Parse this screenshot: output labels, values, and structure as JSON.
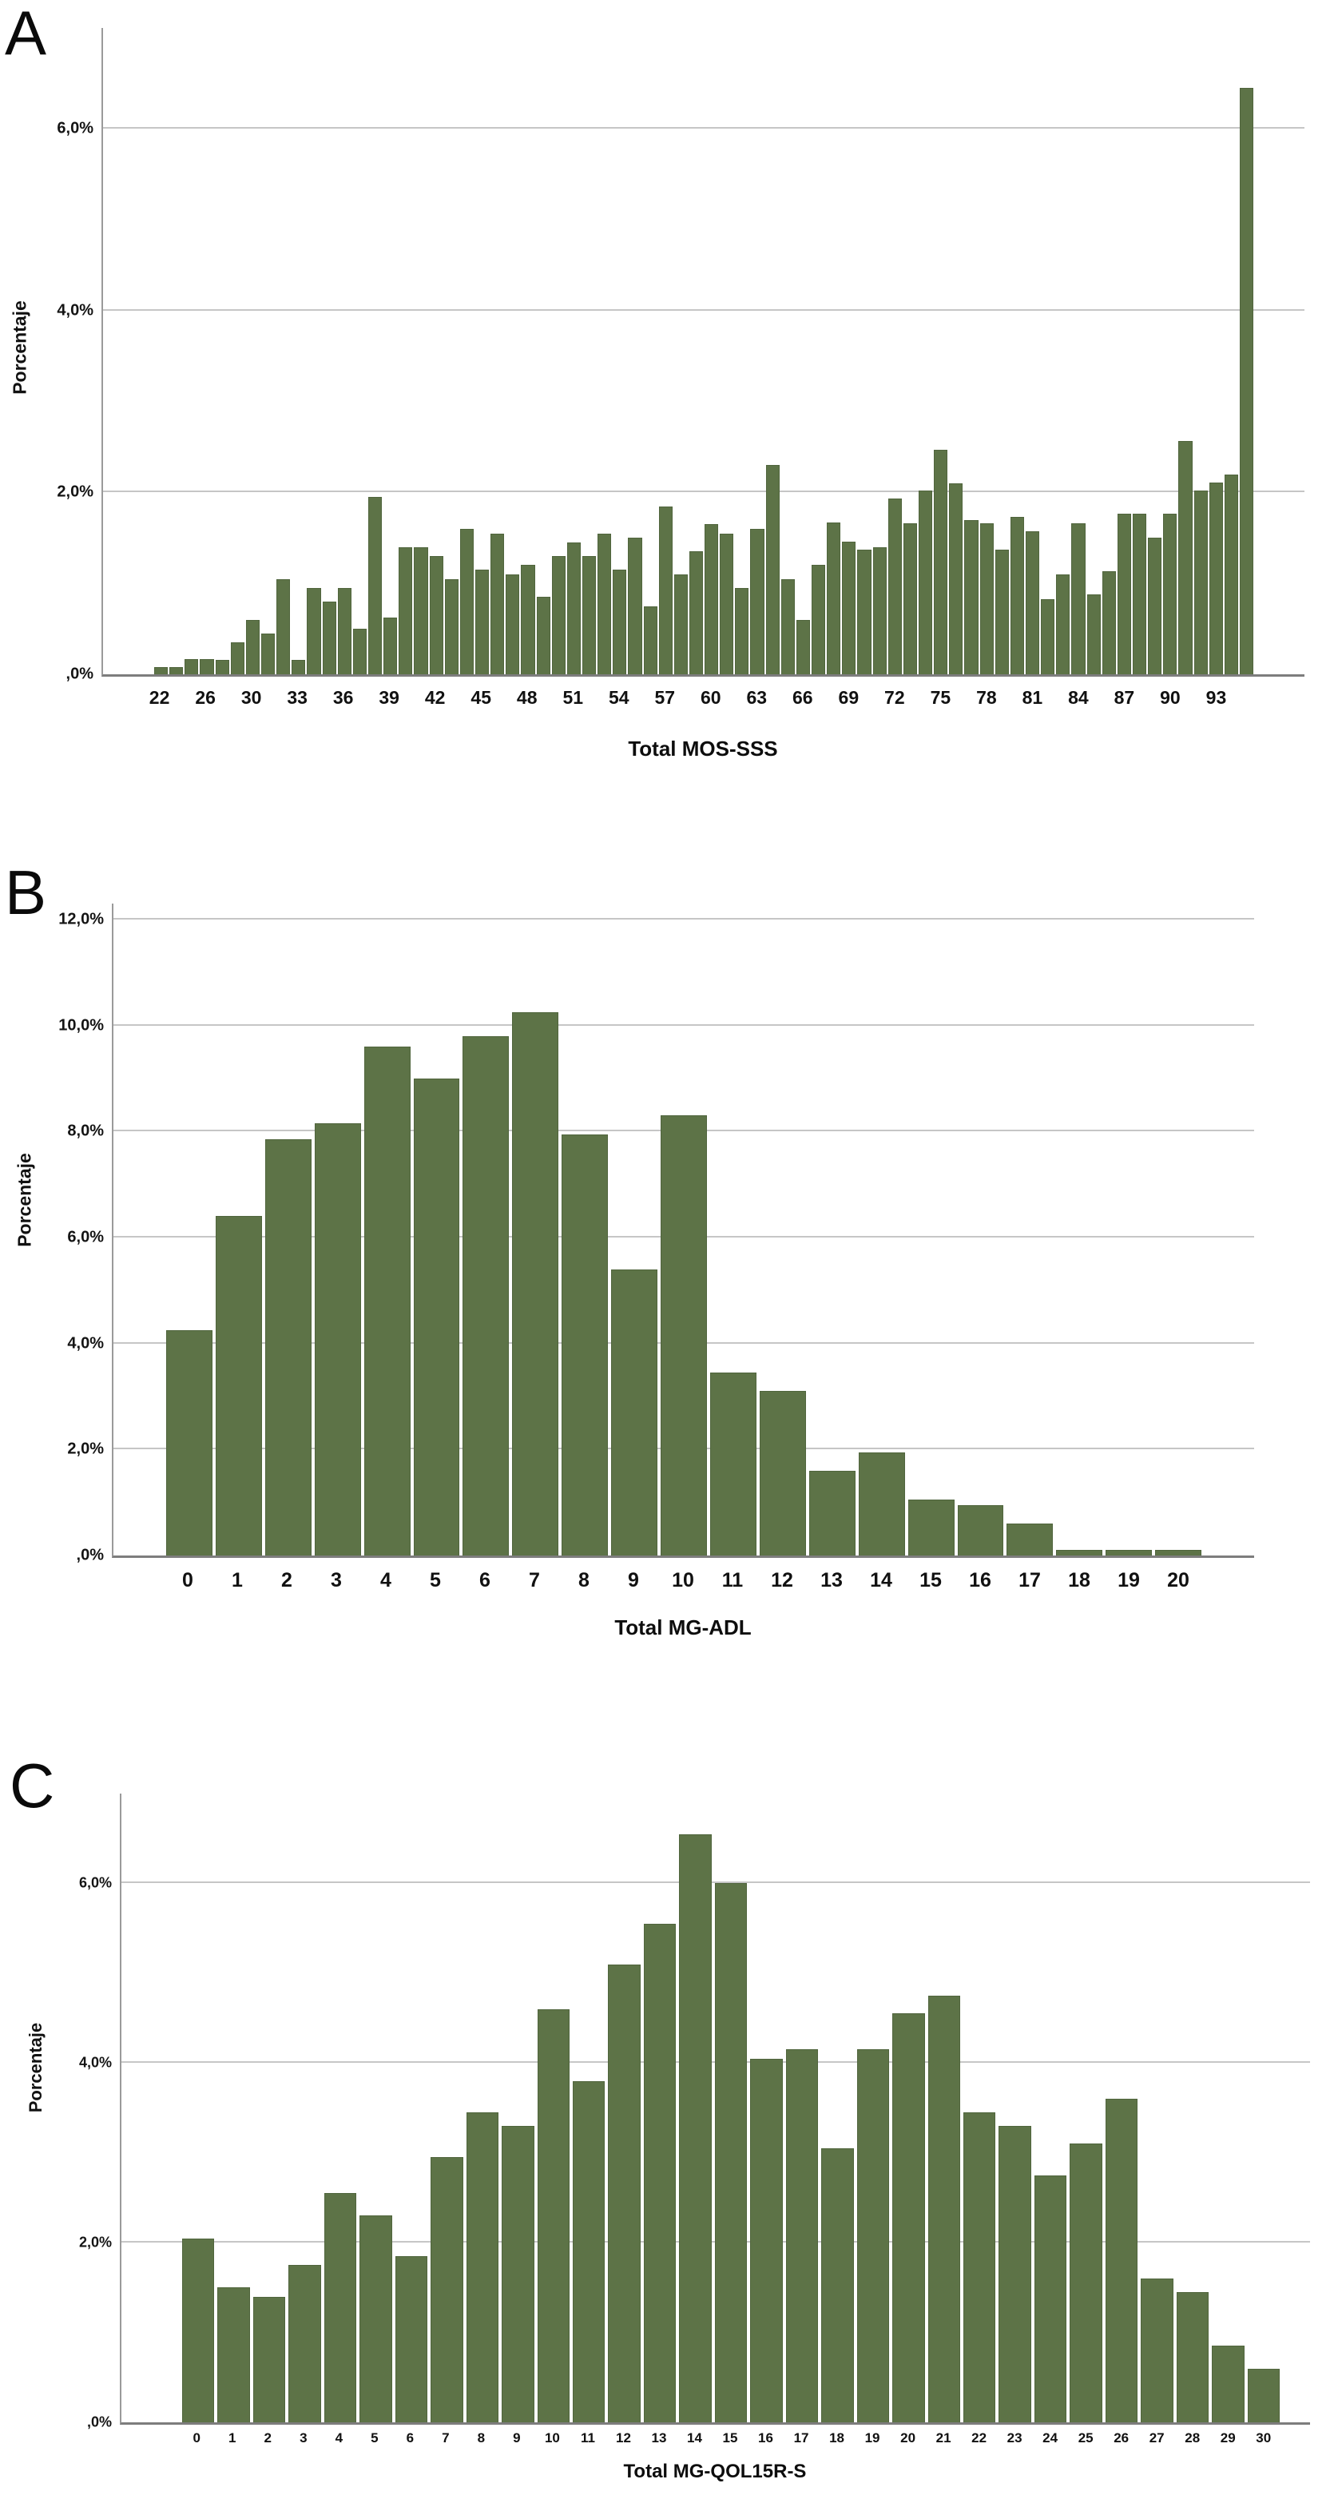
{
  "figure": {
    "background": "#ffffff",
    "bar_color": "#5d7347",
    "gridline_color": "#c6c6c6",
    "axis_color": "#7d7d7d"
  },
  "chart_data": [
    {
      "type": "bar",
      "panel_label": "A",
      "title": "",
      "xlabel": "Total MOS-SSS",
      "ylabel": "Porcentaje",
      "ylim": [
        0,
        7.11
      ],
      "grid": "horizontal",
      "legend_position": "none",
      "bar_color": "#5d7347",
      "yticks": [
        {
          "value": 0,
          "label": ",0%"
        },
        {
          "value": 2,
          "label": "2,0%"
        },
        {
          "value": 4,
          "label": "4,0%"
        },
        {
          "value": 6,
          "label": "6,0%"
        }
      ],
      "x_tick_labels": [
        "22",
        "",
        "",
        "26",
        "",
        "",
        "30",
        "",
        "",
        "33",
        "",
        "",
        "36",
        "",
        "",
        "39",
        "",
        "",
        "42",
        "",
        "",
        "45",
        "",
        "",
        "48",
        "",
        "",
        "51",
        "",
        "",
        "54",
        "",
        "",
        "57",
        "",
        "",
        "60",
        "",
        "",
        "63",
        "",
        "",
        "66",
        "",
        "",
        "69",
        "",
        "",
        "72",
        "",
        "",
        "75",
        "",
        "",
        "78",
        "",
        "",
        "81",
        "",
        "",
        "84",
        "",
        "",
        "87",
        "",
        "",
        "90",
        "",
        "",
        "93",
        "",
        ""
      ],
      "values": [
        0.08,
        0.08,
        0.17,
        0.17,
        0.16,
        0.35,
        0.6,
        0.45,
        1.05,
        0.16,
        0.95,
        0.8,
        0.95,
        0.5,
        1.95,
        0.62,
        1.4,
        1.4,
        1.3,
        1.05,
        1.6,
        1.15,
        1.55,
        1.1,
        1.2,
        0.85,
        1.3,
        1.45,
        1.3,
        1.55,
        1.15,
        1.5,
        0.75,
        1.85,
        1.1,
        1.35,
        1.65,
        1.55,
        0.95,
        1.6,
        2.3,
        1.05,
        0.6,
        1.2,
        1.67,
        1.46,
        1.37,
        1.4,
        1.93,
        1.66,
        2.02,
        2.47,
        2.1,
        1.7,
        1.66,
        1.37,
        1.73,
        1.57,
        0.83,
        1.1,
        1.66,
        0.88,
        1.13,
        1.77,
        1.77,
        1.5,
        1.77,
        2.57,
        2.02,
        2.11,
        2.2,
        6.45
      ]
    },
    {
      "type": "bar",
      "panel_label": "B",
      "title": "",
      "xlabel": "Total MG-ADL",
      "ylabel": "Porcentaje",
      "ylim": [
        0,
        12.3
      ],
      "grid": "horizontal",
      "legend_position": "none",
      "bar_color": "#5d7347",
      "yticks": [
        {
          "value": 0,
          "label": ",0%"
        },
        {
          "value": 2,
          "label": "2,0%"
        },
        {
          "value": 4,
          "label": "4,0%"
        },
        {
          "value": 6,
          "label": "6,0%"
        },
        {
          "value": 8,
          "label": "8,0%"
        },
        {
          "value": 10,
          "label": "10,0%"
        },
        {
          "value": 12,
          "label": "12,0%"
        }
      ],
      "x_tick_labels": [
        "0",
        "1",
        "2",
        "3",
        "4",
        "5",
        "6",
        "7",
        "8",
        "9",
        "10",
        "11",
        "12",
        "13",
        "14",
        "15",
        "16",
        "17",
        "18",
        "19",
        "20"
      ],
      "values": [
        4.25,
        6.4,
        7.85,
        8.15,
        9.6,
        9.0,
        9.8,
        10.25,
        7.95,
        5.4,
        8.3,
        3.45,
        3.1,
        1.6,
        1.95,
        1.05,
        0.95,
        0.6,
        0.1,
        0.1,
        0.1
      ]
    },
    {
      "type": "bar",
      "panel_label": "C",
      "title": "",
      "xlabel": "Total MG-QOL15R-S",
      "ylabel": "Porcentaje",
      "ylim": [
        0,
        7.0
      ],
      "grid": "horizontal",
      "legend_position": "none",
      "bar_color": "#5d7347",
      "yticks": [
        {
          "value": 0,
          "label": ",0%"
        },
        {
          "value": 2,
          "label": "2,0%"
        },
        {
          "value": 4,
          "label": "4,0%"
        },
        {
          "value": 6,
          "label": "6,0%"
        }
      ],
      "x_tick_labels": [
        "0",
        "1",
        "2",
        "3",
        "4",
        "5",
        "6",
        "7",
        "8",
        "9",
        "10",
        "11",
        "12",
        "13",
        "14",
        "15",
        "16",
        "17",
        "18",
        "19",
        "20",
        "21",
        "22",
        "23",
        "24",
        "25",
        "26",
        "27",
        "28",
        "29",
        "30"
      ],
      "values": [
        2.05,
        1.5,
        1.4,
        1.75,
        2.55,
        2.3,
        1.85,
        2.95,
        3.45,
        3.3,
        4.6,
        3.8,
        5.1,
        5.55,
        6.55,
        6.0,
        4.05,
        4.15,
        3.05,
        4.15,
        4.55,
        4.75,
        3.45,
        3.3,
        2.75,
        3.1,
        3.6,
        1.6,
        1.45,
        0.85,
        0.6
      ]
    }
  ]
}
